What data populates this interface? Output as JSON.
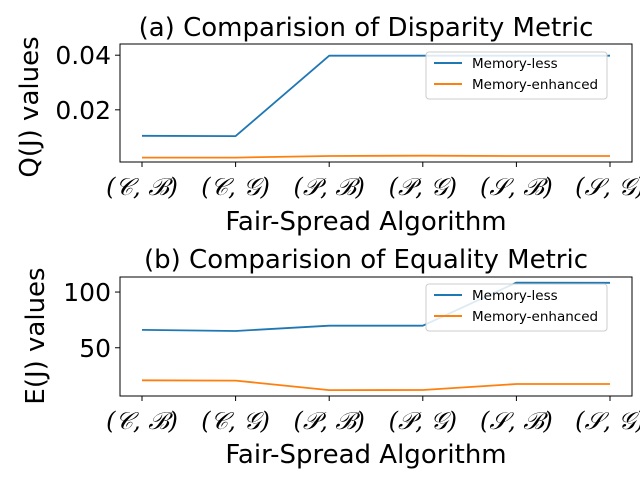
{
  "chart_data": [
    {
      "type": "line",
      "title": "(a) Comparision of Disparity Metric",
      "xlabel": "Fair-Spread Algorithm",
      "ylabel": "Q(J) values",
      "categories": [
        "(𝒞, ℬ)",
        "(𝒞, 𝒢)",
        "(𝒫, ℬ)",
        "(𝒫, 𝒢)",
        "(𝒮, ℬ)",
        "(𝒮, 𝒢)"
      ],
      "yticks": [
        "0.02",
        "0.04"
      ],
      "ylim": [
        0.0009,
        0.0441
      ],
      "grid": false,
      "legend_position": "upper-right",
      "series": [
        {
          "name": "Memory-less",
          "color": "#1f77b4",
          "values": [
            0.0105,
            0.0104,
            0.0398,
            0.0398,
            0.0398,
            0.0398
          ]
        },
        {
          "name": "Memory-enhanced",
          "color": "#ff7f0e",
          "values": [
            0.0025,
            0.0025,
            0.0031,
            0.0032,
            0.0031,
            0.0031
          ]
        }
      ]
    },
    {
      "type": "line",
      "title": "(b) Comparision of Equality Metric",
      "xlabel": "Fair-Spread Algorithm",
      "ylabel": "E(J) values",
      "categories": [
        "(𝒞, ℬ)",
        "(𝒞, 𝒢)",
        "(𝒫, ℬ)",
        "(𝒫, 𝒢)",
        "(𝒮, ℬ)",
        "(𝒮, 𝒢)"
      ],
      "yticks": [
        "50",
        "100"
      ],
      "ylim": [
        6.7,
        113.5
      ],
      "grid": false,
      "legend_position": "upper-right",
      "series": [
        {
          "name": "Memory-less",
          "color": "#1f77b4",
          "values": [
            66.0,
            65.0,
            69.8,
            69.8,
            108.5,
            108.3
          ]
        },
        {
          "name": "Memory-enhanced",
          "color": "#ff7f0e",
          "values": [
            20.8,
            20.5,
            12.0,
            12.1,
            17.5,
            17.5
          ]
        }
      ]
    }
  ]
}
